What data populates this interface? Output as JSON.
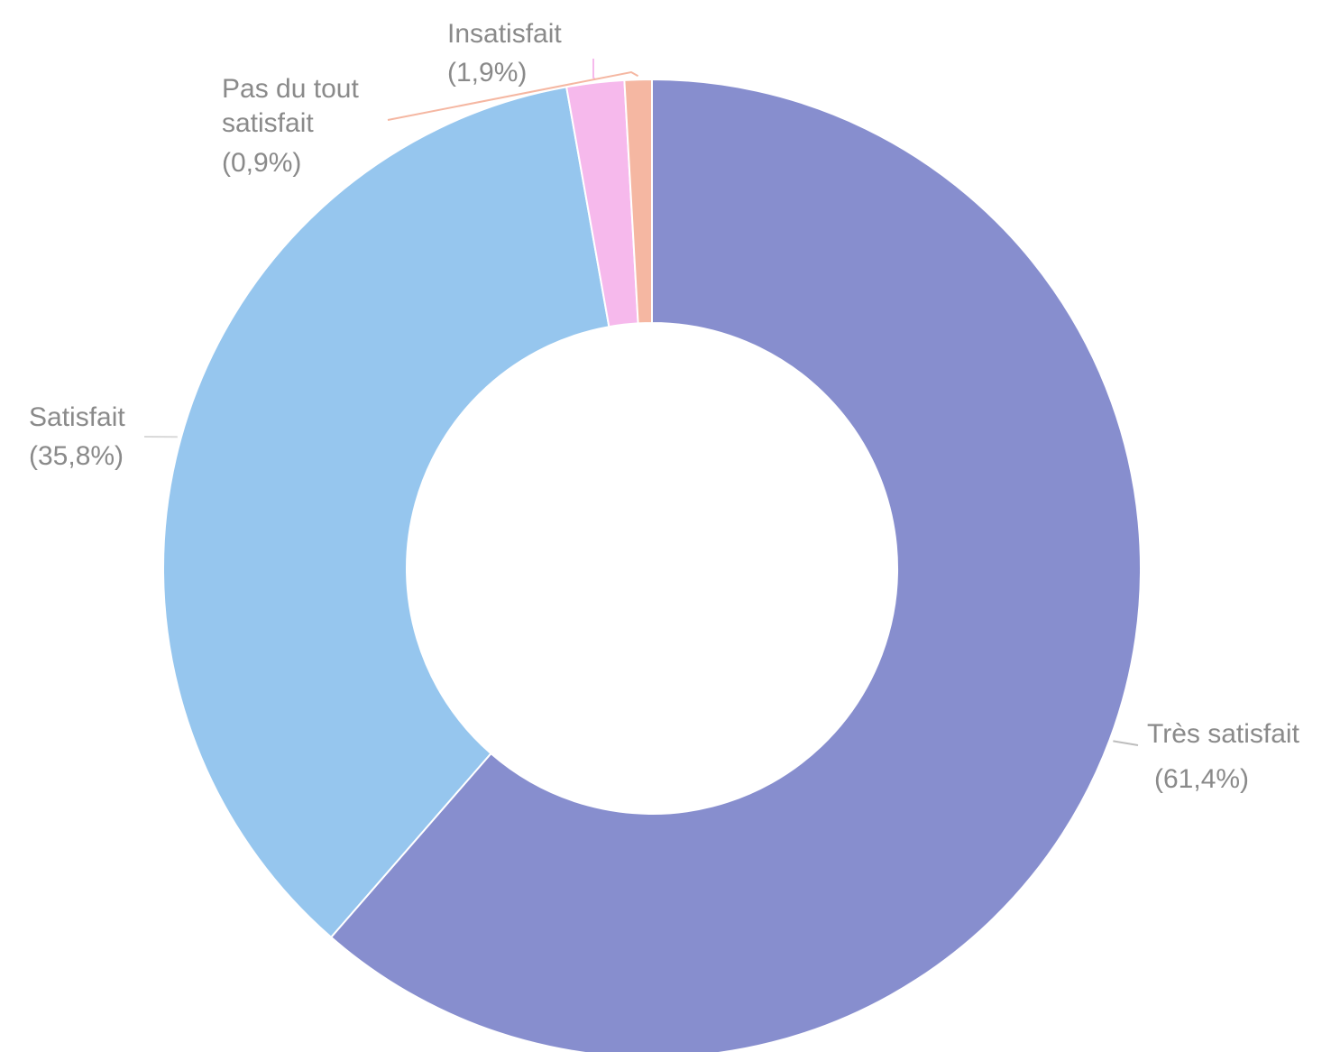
{
  "chart_data": {
    "type": "pie",
    "variant": "donut",
    "title": "",
    "slices": [
      {
        "name": "Très satisfait",
        "value": 61.4,
        "pct_label": "(61,4%)",
        "color": "#878ece"
      },
      {
        "name": "Satisfait",
        "value": 35.8,
        "pct_label": "(35,8%)",
        "color": "#96c6ee"
      },
      {
        "name": "Insatisfait",
        "value": 1.9,
        "pct_label": "(1,9%)",
        "color": "#f6b9ec"
      },
      {
        "name": "Pas du tout satisfait",
        "value": 0.9,
        "pct_label": "(0,9%)",
        "color": "#f5b7a2"
      }
    ],
    "legend": "none",
    "labels_outside": true,
    "label_color": "#8a8a8a"
  }
}
